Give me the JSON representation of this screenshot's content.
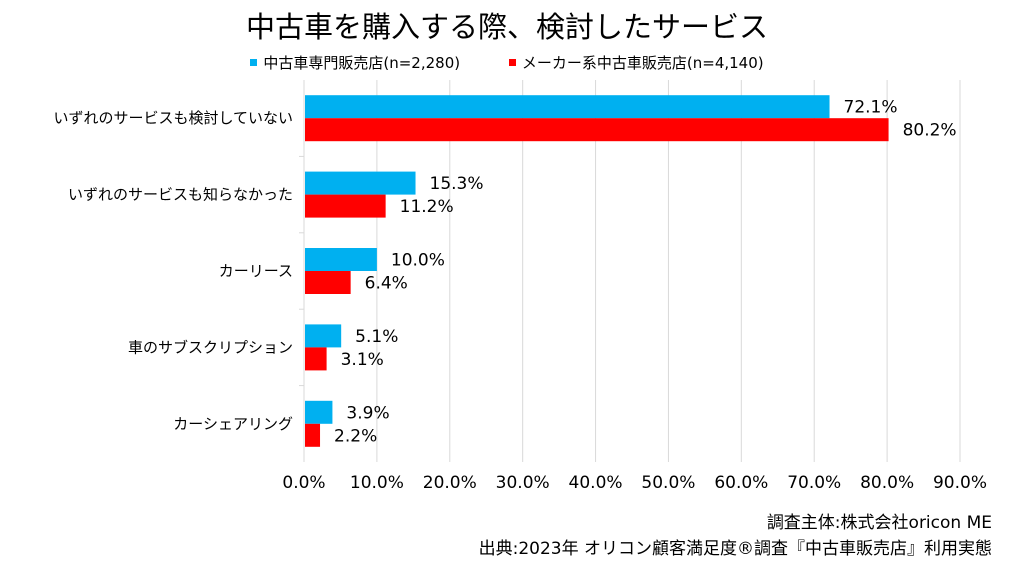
{
  "chart_data": {
    "type": "bar",
    "orientation": "horizontal",
    "title": "中古車を購入する際、検討したサービス",
    "categories": [
      "いずれのサービスも検討していない",
      "いずれのサービスも知らなかった",
      "カーリース",
      "車のサブスクリプション",
      "カーシェアリング"
    ],
    "series": [
      {
        "name": "中古車専門販売店(n=2,280)",
        "color": "#00b0f0",
        "values": [
          72.1,
          15.3,
          10.0,
          5.1,
          3.9
        ],
        "labels": [
          "72.1%",
          "15.3%",
          "10.0%",
          "5.1%",
          "3.9%"
        ]
      },
      {
        "name": "メーカー系中古車販売店(n=4,140)",
        "color": "#ff0000",
        "values": [
          80.2,
          11.2,
          6.4,
          3.1,
          2.2
        ],
        "labels": [
          "80.2%",
          "11.2%",
          "6.4%",
          "3.1%",
          "2.2%"
        ]
      }
    ],
    "xlim": [
      0,
      90
    ],
    "xticks": [
      "0.0%",
      "10.0%",
      "20.0%",
      "30.0%",
      "40.0%",
      "50.0%",
      "60.0%",
      "70.0%",
      "80.0%",
      "90.0%"
    ],
    "grid": true,
    "legend_position": "top"
  },
  "footnotes": {
    "survey": "調査主体:株式会社oricon ME",
    "source": "出典:2023年 オリコン顧客満足度®調査『中古車販売店』利用実態"
  }
}
